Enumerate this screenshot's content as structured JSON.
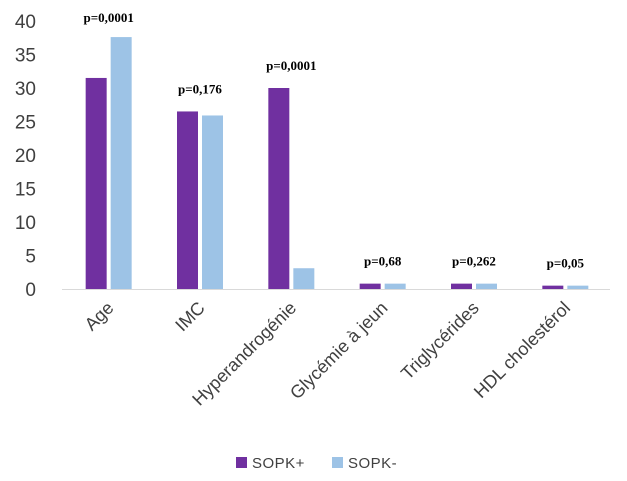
{
  "chart_data": {
    "type": "bar",
    "categories": [
      "Age",
      "IMC",
      "Hyperandrogénie",
      "Glycémie à jeun",
      "Triglycérides",
      "HDL cholestérol"
    ],
    "series": [
      {
        "name": "SOPK+",
        "color": "#7030a0",
        "values": [
          31.5,
          26.5,
          30,
          0.8,
          0.8,
          0.5
        ]
      },
      {
        "name": "SOPK-",
        "color": "#9dc3e6",
        "values": [
          37.6,
          25.9,
          3.1,
          0.8,
          0.8,
          0.5
        ]
      }
    ],
    "annotations": [
      "p=0,0001",
      "p=0,176",
      "p=0,0001",
      "p=0,68",
      "p=0,262",
      "p=0,05"
    ],
    "ylim": [
      0,
      40
    ],
    "yticks": [
      0,
      5,
      10,
      15,
      20,
      25,
      30,
      35,
      40
    ],
    "title": "",
    "xlabel": "",
    "ylabel": "",
    "grid": false,
    "legend_position": "bottom"
  }
}
